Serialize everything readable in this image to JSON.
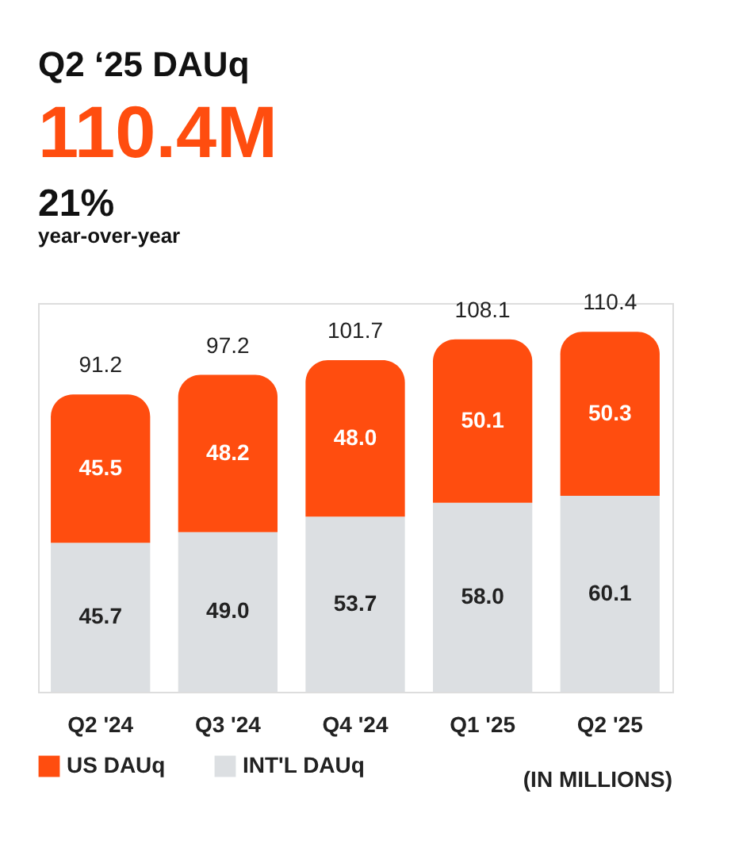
{
  "chart_data": {
    "type": "bar",
    "title": "Q2 ‘25 DAUq",
    "subtitle": "110.4M",
    "annotations": [
      "21%",
      "year-over-year",
      "(IN MILLIONS)"
    ],
    "categories": [
      "Q2 '24",
      "Q3 '24",
      "Q4 '24",
      "Q1 '25",
      "Q2 '25"
    ],
    "series": [
      {
        "name": "INT'L DAUq",
        "color": "#dcdfe2",
        "values": [
          45.7,
          49.0,
          53.7,
          58.0,
          60.1
        ],
        "value_labels": [
          "45.7",
          "49.0",
          "53.7",
          "58.0",
          "60.1"
        ]
      },
      {
        "name": "US DAUq",
        "color": "#ff4d0f",
        "values": [
          45.5,
          48.2,
          48.0,
          50.1,
          50.3
        ],
        "value_labels": [
          "45.5",
          "48.2",
          "48.0",
          "50.1",
          "50.3"
        ]
      }
    ],
    "stacked": true,
    "totals": [
      "91.2",
      "97.2",
      "101.7",
      "108.1",
      "110.4"
    ],
    "legend": "bottom",
    "grid": false
  }
}
